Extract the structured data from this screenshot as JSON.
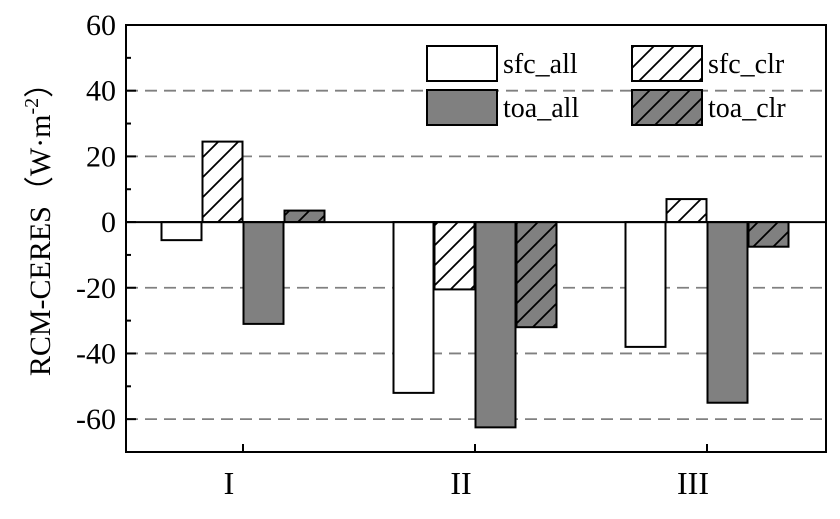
{
  "chart_data": {
    "type": "bar",
    "categories": [
      "I",
      "II",
      "III"
    ],
    "series": [
      {
        "name": "sfc_all",
        "values": [
          -5.5,
          -52,
          -38
        ],
        "fill": "#ffffff",
        "hatch": false
      },
      {
        "name": "sfc_clr",
        "values": [
          24.5,
          -20.5,
          7
        ],
        "fill": "#ffffff",
        "hatch": true
      },
      {
        "name": "toa_all",
        "values": [
          -31,
          -62.5,
          -55
        ],
        "fill": "#808080",
        "hatch": false
      },
      {
        "name": "toa_clr",
        "values": [
          3.5,
          -32,
          -7.5
        ],
        "fill": "#808080",
        "hatch": true
      }
    ],
    "ylabel_main": "RCM-CERES（W·m",
    "ylabel_sup": "-2",
    "ylabel_close": "）",
    "xlabel": "",
    "ylim": [
      -70,
      60
    ],
    "yticks": [
      60,
      40,
      20,
      0,
      -20,
      -40,
      -60
    ],
    "grid": "dashed horizontal at 40, -20, -40, -60",
    "legend_position": "top-right",
    "colors": {
      "gray": "#808080",
      "edge": "#000000",
      "grid": "#808080"
    }
  }
}
